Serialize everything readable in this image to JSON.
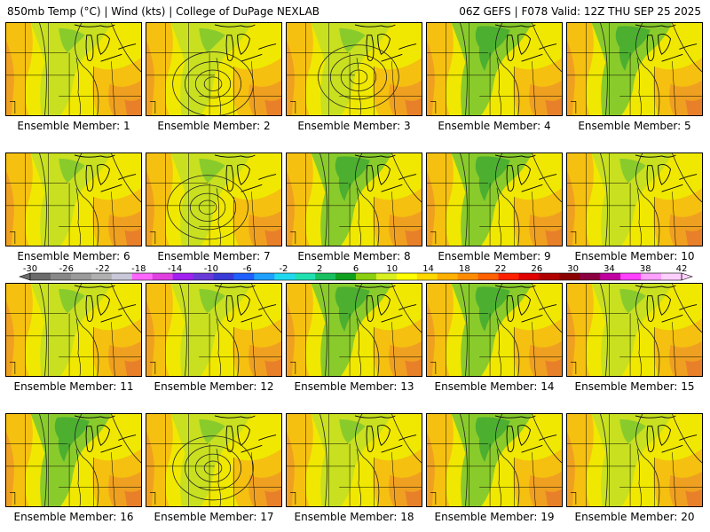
{
  "header": {
    "left": "850mb Temp (°C) | Wind (kts) | College of DuPage NEXLAB",
    "right": "06Z GEFS | F078 Valid: 12Z THU SEP 25 2025"
  },
  "members": [
    {
      "label": "Ensemble Member: 1",
      "style": 0
    },
    {
      "label": "Ensemble Member: 2",
      "style": 1
    },
    {
      "label": "Ensemble Member: 3",
      "style": 1
    },
    {
      "label": "Ensemble Member: 4",
      "style": 2
    },
    {
      "label": "Ensemble Member: 5",
      "style": 2
    },
    {
      "label": "Ensemble Member: 6",
      "style": 0
    },
    {
      "label": "Ensemble Member: 7",
      "style": 1
    },
    {
      "label": "Ensemble Member: 8",
      "style": 2
    },
    {
      "label": "Ensemble Member: 9",
      "style": 2
    },
    {
      "label": "Ensemble Member: 10",
      "style": 0
    },
    {
      "label": "Ensemble Member: 11",
      "style": 0
    },
    {
      "label": "Ensemble Member: 12",
      "style": 0
    },
    {
      "label": "Ensemble Member: 13",
      "style": 2
    },
    {
      "label": "Ensemble Member: 14",
      "style": 2
    },
    {
      "label": "Ensemble Member: 15",
      "style": 0
    },
    {
      "label": "Ensemble Member: 16",
      "style": 2
    },
    {
      "label": "Ensemble Member: 17",
      "style": 1
    },
    {
      "label": "Ensemble Member: 18",
      "style": 0
    },
    {
      "label": "Ensemble Member: 19",
      "style": 2
    },
    {
      "label": "Ensemble Member: 20",
      "style": 0
    }
  ],
  "colorbar": {
    "tick_labels": [
      "-30",
      "-26",
      "-22",
      "-18",
      "-14",
      "-10",
      "-6",
      "-2",
      "2",
      "6",
      "10",
      "14",
      "18",
      "22",
      "26",
      "30",
      "34",
      "38",
      "42"
    ],
    "colors": [
      "#6b6b6b",
      "#888888",
      "#9a9a9a",
      "#b0b0b0",
      "#c8c8d8",
      "#ff66ff",
      "#e040e0",
      "#a020f0",
      "#6a3ad8",
      "#3a3ad8",
      "#2060ff",
      "#20a0ff",
      "#20d8f0",
      "#20e0b0",
      "#18c060",
      "#10a020",
      "#8ad010",
      "#d8ef20",
      "#ffff00",
      "#ffd800",
      "#ffb000",
      "#ff8c00",
      "#ff6000",
      "#ff2000",
      "#e00000",
      "#b00000",
      "#8a0000",
      "#8a0040",
      "#c000a0",
      "#ff40ff",
      "#ffa0ff",
      "#ffd0ff"
    ]
  },
  "colors": {
    "green_dark": "#4caf30",
    "green": "#8acb2c",
    "yellow_green": "#c8e020",
    "yellow": "#f0e800",
    "orange_light": "#f5c010",
    "orange": "#f0a020",
    "orange_dark": "#e8802a"
  }
}
